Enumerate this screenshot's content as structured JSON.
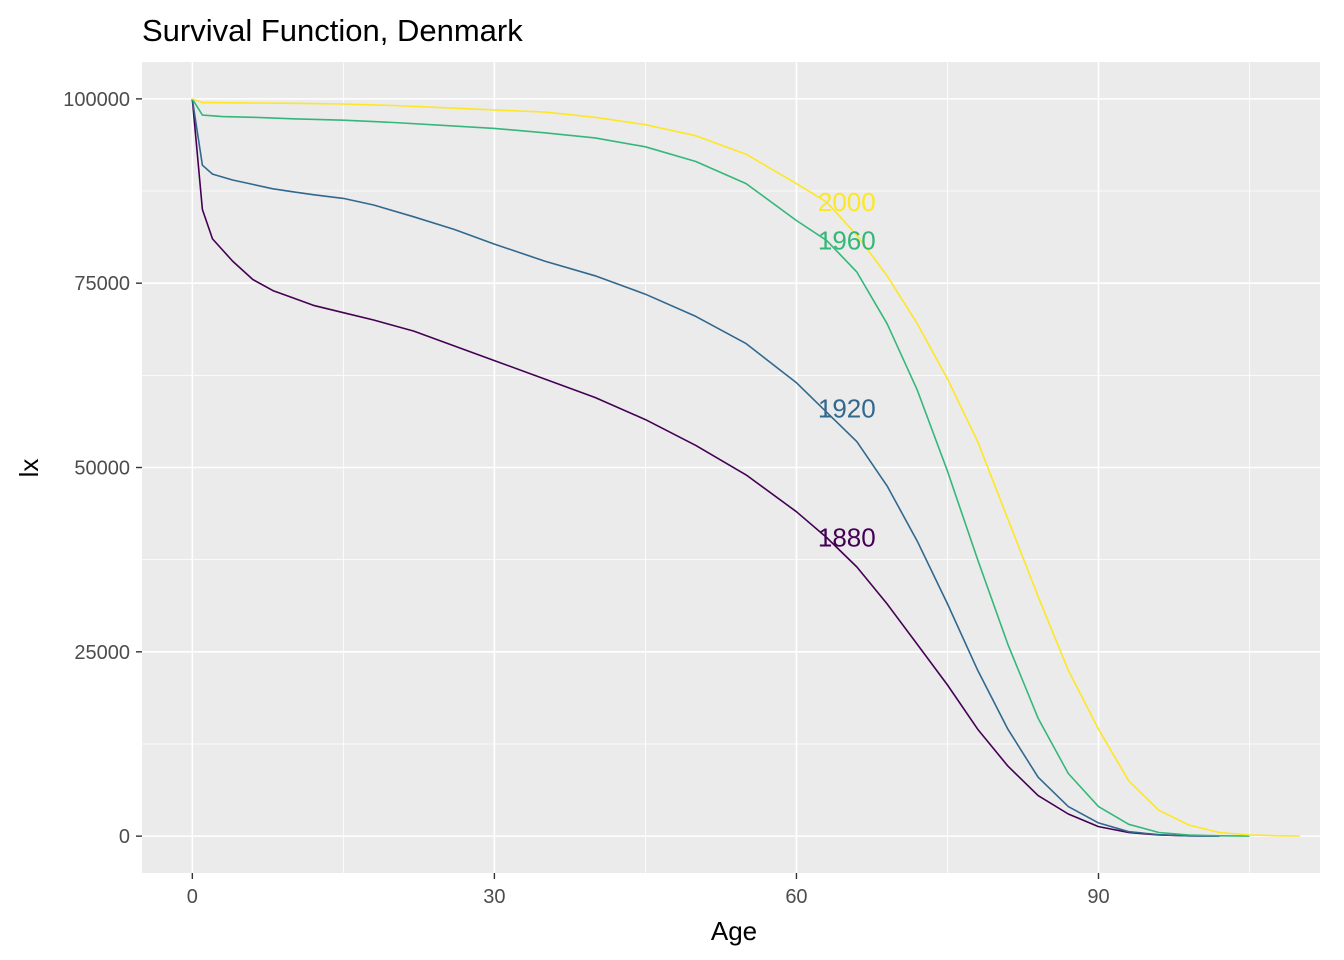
{
  "chart_data": {
    "type": "line",
    "title": "Survival Function, Denmark",
    "xlabel": "Age",
    "ylabel": "lx",
    "xlim": [
      -5,
      112
    ],
    "ylim": [
      -5000,
      105000
    ],
    "xticks": [
      0,
      30,
      60,
      90
    ],
    "xtick_labels": [
      "0",
      "30",
      "60",
      "90"
    ],
    "yticks": [
      0,
      25000,
      50000,
      75000,
      100000
    ],
    "ytick_labels": [
      "0",
      "25000",
      "50000",
      "75000",
      "100000"
    ],
    "grid": true,
    "legend": "none",
    "label_x": 65,
    "series": [
      {
        "name": "1880",
        "color": "#440154",
        "label_y": 40500,
        "points": [
          [
            0,
            100000
          ],
          [
            1,
            85000
          ],
          [
            2,
            81000
          ],
          [
            4,
            78000
          ],
          [
            6,
            75500
          ],
          [
            8,
            74000
          ],
          [
            10,
            73000
          ],
          [
            12,
            72000
          ],
          [
            15,
            71000
          ],
          [
            18,
            70000
          ],
          [
            22,
            68500
          ],
          [
            26,
            66500
          ],
          [
            30,
            64500
          ],
          [
            35,
            62000
          ],
          [
            40,
            59500
          ],
          [
            45,
            56500
          ],
          [
            50,
            53000
          ],
          [
            55,
            49000
          ],
          [
            60,
            44000
          ],
          [
            63,
            40500
          ],
          [
            66,
            36500
          ],
          [
            69,
            31500
          ],
          [
            72,
            26000
          ],
          [
            75,
            20500
          ],
          [
            78,
            14500
          ],
          [
            81,
            9500
          ],
          [
            84,
            5500
          ],
          [
            87,
            3000
          ],
          [
            90,
            1300
          ],
          [
            93,
            500
          ],
          [
            96,
            150
          ],
          [
            99,
            50
          ],
          [
            102,
            10
          ]
        ]
      },
      {
        "name": "1920",
        "color": "#31688E",
        "label_y": 58000,
        "points": [
          [
            0,
            100000
          ],
          [
            1,
            91000
          ],
          [
            2,
            89800
          ],
          [
            4,
            89000
          ],
          [
            6,
            88400
          ],
          [
            8,
            87800
          ],
          [
            10,
            87400
          ],
          [
            12,
            87000
          ],
          [
            15,
            86500
          ],
          [
            18,
            85600
          ],
          [
            22,
            84000
          ],
          [
            26,
            82300
          ],
          [
            30,
            80300
          ],
          [
            35,
            78000
          ],
          [
            40,
            76000
          ],
          [
            45,
            73500
          ],
          [
            50,
            70500
          ],
          [
            55,
            66800
          ],
          [
            60,
            61500
          ],
          [
            63,
            57500
          ],
          [
            66,
            53500
          ],
          [
            69,
            47500
          ],
          [
            72,
            40000
          ],
          [
            75,
            31500
          ],
          [
            78,
            22500
          ],
          [
            81,
            14500
          ],
          [
            84,
            8000
          ],
          [
            87,
            4000
          ],
          [
            90,
            1800
          ],
          [
            93,
            600
          ],
          [
            96,
            200
          ],
          [
            99,
            50
          ],
          [
            102,
            10
          ]
        ]
      },
      {
        "name": "1960",
        "color": "#35B779",
        "label_y": 80800,
        "points": [
          [
            0,
            100000
          ],
          [
            1,
            97800
          ],
          [
            3,
            97600
          ],
          [
            6,
            97500
          ],
          [
            10,
            97300
          ],
          [
            15,
            97100
          ],
          [
            20,
            96800
          ],
          [
            25,
            96400
          ],
          [
            30,
            96000
          ],
          [
            35,
            95400
          ],
          [
            40,
            94700
          ],
          [
            45,
            93500
          ],
          [
            50,
            91500
          ],
          [
            55,
            88500
          ],
          [
            60,
            83500
          ],
          [
            63,
            80800
          ],
          [
            66,
            76500
          ],
          [
            69,
            69500
          ],
          [
            72,
            60500
          ],
          [
            75,
            49500
          ],
          [
            78,
            37500
          ],
          [
            81,
            26000
          ],
          [
            84,
            16000
          ],
          [
            87,
            8500
          ],
          [
            90,
            4000
          ],
          [
            93,
            1600
          ],
          [
            96,
            500
          ],
          [
            99,
            150
          ],
          [
            102,
            40
          ],
          [
            105,
            10
          ]
        ]
      },
      {
        "name": "2000",
        "color": "#FDE725",
        "label_y": 86000,
        "points": [
          [
            0,
            100000
          ],
          [
            1,
            99500
          ],
          [
            5,
            99450
          ],
          [
            10,
            99400
          ],
          [
            15,
            99300
          ],
          [
            20,
            99100
          ],
          [
            25,
            98800
          ],
          [
            30,
            98500
          ],
          [
            35,
            98200
          ],
          [
            40,
            97500
          ],
          [
            45,
            96500
          ],
          [
            50,
            95000
          ],
          [
            55,
            92500
          ],
          [
            60,
            88500
          ],
          [
            63,
            86000
          ],
          [
            66,
            81500
          ],
          [
            69,
            76000
          ],
          [
            72,
            69500
          ],
          [
            75,
            62000
          ],
          [
            78,
            53500
          ],
          [
            81,
            43000
          ],
          [
            84,
            32500
          ],
          [
            87,
            22500
          ],
          [
            90,
            14500
          ],
          [
            93,
            7500
          ],
          [
            96,
            3500
          ],
          [
            99,
            1500
          ],
          [
            102,
            500
          ],
          [
            105,
            150
          ],
          [
            108,
            50
          ],
          [
            110,
            20
          ]
        ]
      }
    ]
  }
}
